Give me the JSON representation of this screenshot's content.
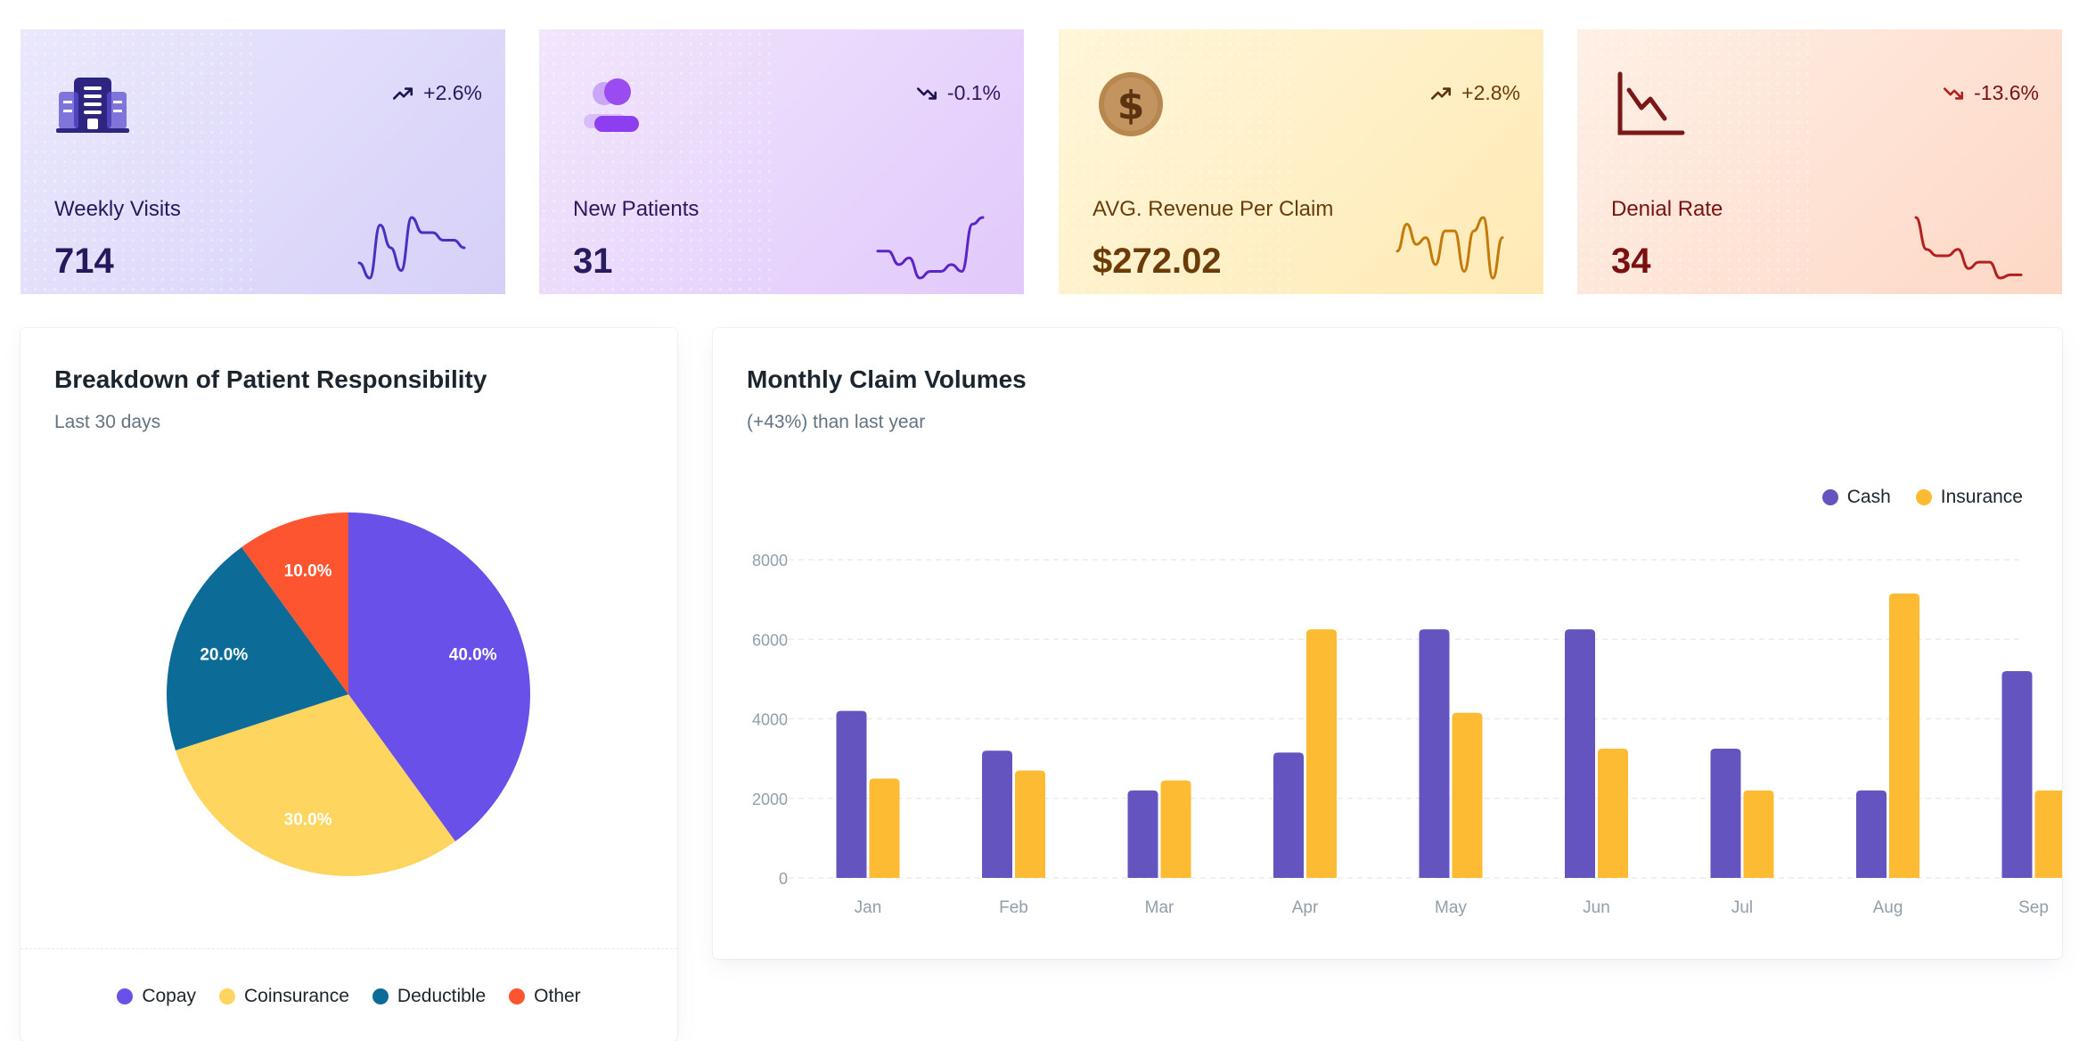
{
  "stats": [
    {
      "label": "Weekly Visits",
      "value": "714",
      "trend": "+2.6%",
      "direction": "up",
      "icon": "building-icon",
      "color": "#4c2fc2",
      "spark": [
        3,
        1,
        8,
        5,
        2,
        9,
        7,
        7,
        6,
        6,
        5
      ]
    },
    {
      "label": "New Patients",
      "value": "31",
      "trend": "-0.1%",
      "direction": "down",
      "icon": "user-icon",
      "color": "#5a24c9",
      "spark": [
        5,
        5,
        3,
        4,
        1,
        2,
        2,
        3,
        2,
        9,
        10
      ]
    },
    {
      "label": "AVG. Revenue Per Claim",
      "value": "$272.02",
      "trend": "+2.8%",
      "direction": "up",
      "icon": "dollar-coin-icon",
      "color": "#c47a0a",
      "spark": [
        5,
        9,
        6,
        7,
        3,
        8,
        8,
        2,
        8,
        10,
        1,
        7
      ]
    },
    {
      "label": "Denial Rate",
      "value": "34",
      "trend": "-13.6%",
      "direction": "down",
      "icon": "line-chart-icon",
      "color": "#b3201e",
      "spark": [
        10,
        5,
        4,
        4,
        5,
        2,
        3,
        3,
        0.5,
        1,
        1
      ]
    }
  ],
  "pie": {
    "title": "Breakdown of Patient Responsibility",
    "subtitle": "Last 30 days"
  },
  "bar": {
    "title": "Monthly Claim Volumes",
    "subtitle": "(+43%) than last year"
  },
  "colors": {
    "copay": "#6950e8",
    "coinsurance": "#fdd55f",
    "deductible": "#0c6b97",
    "other": "#fc5530",
    "cash": "#6354c0",
    "insurance": "#fdbb33"
  },
  "chart_data": [
    {
      "type": "pie",
      "title": "Breakdown of Patient Responsibility",
      "subtitle": "Last 30 days",
      "categories": [
        "Copay",
        "Coinsurance",
        "Deductible",
        "Other"
      ],
      "values": [
        40,
        30,
        20,
        10
      ],
      "labels": [
        "40.0%",
        "30.0%",
        "20.0%",
        "10.0%"
      ],
      "legend_position": "bottom"
    },
    {
      "type": "bar",
      "title": "Monthly Claim Volumes",
      "subtitle": "(+43%) than last year",
      "categories": [
        "Jan",
        "Feb",
        "Mar",
        "Apr",
        "May",
        "Jun",
        "Jul",
        "Aug",
        "Sep"
      ],
      "series": [
        {
          "name": "Cash",
          "values": [
            4200,
            3200,
            2200,
            3150,
            6250,
            6250,
            3250,
            2200,
            5200
          ]
        },
        {
          "name": "Insurance",
          "values": [
            2500,
            2700,
            2450,
            6250,
            4150,
            3250,
            2200,
            7150,
            2200
          ]
        }
      ],
      "yticks": [
        "0",
        "2000",
        "4000",
        "6000",
        "8000"
      ],
      "ylim": [
        0,
        8000
      ],
      "legend_position": "top-right",
      "grid": true
    }
  ]
}
